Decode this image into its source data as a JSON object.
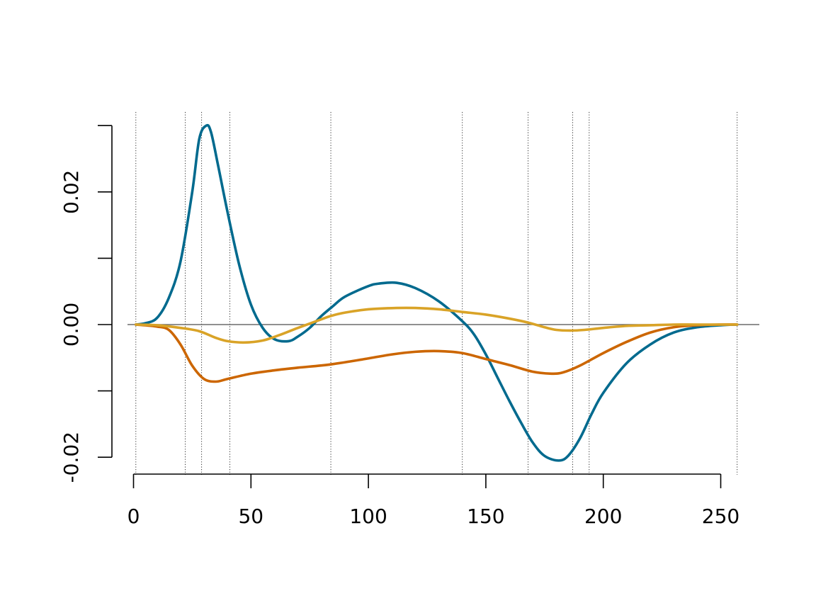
{
  "chart_data": {
    "type": "line",
    "title": "",
    "xlabel": "",
    "ylabel": "",
    "xlim": [
      0,
      260
    ],
    "ylim": [
      -0.02,
      0.03
    ],
    "x_ticks": [
      0,
      50,
      100,
      150,
      200,
      250
    ],
    "x_tick_labels": [
      "0",
      "50",
      "100",
      "150",
      "200",
      "250"
    ],
    "y_ticks": [
      -0.02,
      -0.01,
      0.0,
      0.01,
      0.02,
      0.03
    ],
    "y_tick_labels": [
      "-0.02",
      "",
      "0.00",
      "",
      "0.02",
      ""
    ],
    "zero_line": 0,
    "vertical_lines": [
      1,
      22,
      29,
      41,
      84,
      140,
      168,
      187,
      194,
      257
    ],
    "grid": false,
    "legend": "none",
    "series": [
      {
        "color": "#006A8E",
        "x": [
          1,
          5,
          10,
          15,
          20,
          25,
          28,
          31,
          33,
          36,
          40,
          45,
          50,
          55,
          60,
          66,
          70,
          75,
          80,
          85,
          90,
          100,
          105,
          112,
          120,
          130,
          140,
          145,
          150,
          155,
          160,
          165,
          170,
          175,
          181,
          185,
          190,
          195,
          200,
          210,
          220,
          230,
          240,
          250,
          257
        ],
        "y": [
          0.0,
          0.0002,
          0.001,
          0.004,
          0.0095,
          0.02,
          0.028,
          0.03,
          0.029,
          0.024,
          0.017,
          0.009,
          0.003,
          -0.0005,
          -0.0022,
          -0.0025,
          -0.0018,
          -0.0005,
          0.0013,
          0.0028,
          0.0042,
          0.0058,
          0.0062,
          0.0063,
          0.0055,
          0.0035,
          0.0005,
          -0.0015,
          -0.0045,
          -0.008,
          -0.0115,
          -0.0148,
          -0.0178,
          -0.0198,
          -0.0205,
          -0.0198,
          -0.0172,
          -0.0135,
          -0.0103,
          -0.0058,
          -0.003,
          -0.0012,
          -0.0004,
          -0.0001,
          0.0
        ],
        "name": ""
      },
      {
        "color": "#CC6600",
        "x": [
          1,
          10,
          15,
          20,
          25,
          30,
          35,
          40,
          50,
          60,
          70,
          84,
          100,
          110,
          120,
          130,
          140,
          150,
          160,
          170,
          178,
          183,
          190,
          200,
          210,
          220,
          230,
          240,
          250,
          257
        ],
        "y": [
          0.0,
          -0.0003,
          -0.0008,
          -0.003,
          -0.0062,
          -0.0082,
          -0.0086,
          -0.0082,
          -0.0074,
          -0.0069,
          -0.0065,
          -0.006,
          -0.0051,
          -0.0045,
          -0.0041,
          -0.004,
          -0.0043,
          -0.0052,
          -0.0061,
          -0.0071,
          -0.0074,
          -0.0072,
          -0.0062,
          -0.0043,
          -0.0026,
          -0.0012,
          -0.0004,
          -0.0001,
          0.0,
          0.0
        ],
        "name": ""
      },
      {
        "color": "#D9A327",
        "x": [
          1,
          10,
          20,
          28,
          35,
          40,
          47,
          55,
          62,
          70,
          80,
          84,
          90,
          100,
          112,
          120,
          130,
          140,
          150,
          160,
          168,
          175,
          180,
          186,
          192,
          200,
          210,
          220,
          230,
          240,
          257
        ],
        "y": [
          0.0,
          -0.0001,
          -0.0005,
          -0.001,
          -0.002,
          -0.0025,
          -0.0027,
          -0.0024,
          -0.0016,
          -0.0005,
          0.0008,
          0.0013,
          0.0018,
          0.0023,
          0.0025,
          0.0025,
          0.0023,
          0.0019,
          0.0015,
          0.0009,
          0.0003,
          -0.0004,
          -0.0008,
          -0.0009,
          -0.0008,
          -0.0005,
          -0.0002,
          -0.0001,
          0.0,
          0.0,
          0.0
        ],
        "name": ""
      }
    ]
  }
}
